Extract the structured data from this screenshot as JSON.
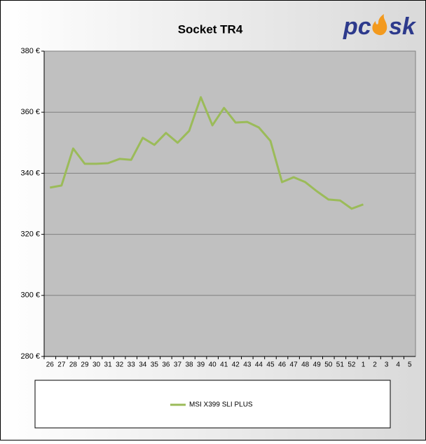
{
  "chart_data": {
    "type": "line",
    "title": "Socket TR4",
    "logo": {
      "left": "pc",
      "right": "sk"
    },
    "categories": [
      "26",
      "27",
      "28",
      "29",
      "30",
      "31",
      "32",
      "33",
      "34",
      "35",
      "36",
      "37",
      "38",
      "39",
      "40",
      "41",
      "42",
      "43",
      "44",
      "45",
      "46",
      "47",
      "48",
      "49",
      "50",
      "51",
      "52",
      "1",
      "2",
      "3",
      "4",
      "5"
    ],
    "series": [
      {
        "name": "MSI X399 SLI PLUS",
        "color": "#9bbb59",
        "values": [
          335.3,
          336.0,
          348.1,
          343.1,
          343.1,
          343.3,
          344.7,
          344.4,
          351.6,
          349.3,
          353.2,
          350.0,
          353.9,
          364.9,
          355.7,
          361.4,
          356.6,
          356.8,
          355.0,
          350.6,
          337.1,
          338.7,
          337.1,
          334.1,
          331.4,
          331.1,
          328.4,
          329.8,
          null,
          null,
          null,
          null
        ]
      }
    ],
    "ylim": [
      280,
      380
    ],
    "yticks": [
      {
        "value": 280,
        "label": "280 €"
      },
      {
        "value": 300,
        "label": "300 €"
      },
      {
        "value": 320,
        "label": "320 €"
      },
      {
        "value": 340,
        "label": "340 €"
      },
      {
        "value": 360,
        "label": "360 €"
      },
      {
        "value": 380,
        "label": "380 €"
      }
    ],
    "grid": true
  }
}
